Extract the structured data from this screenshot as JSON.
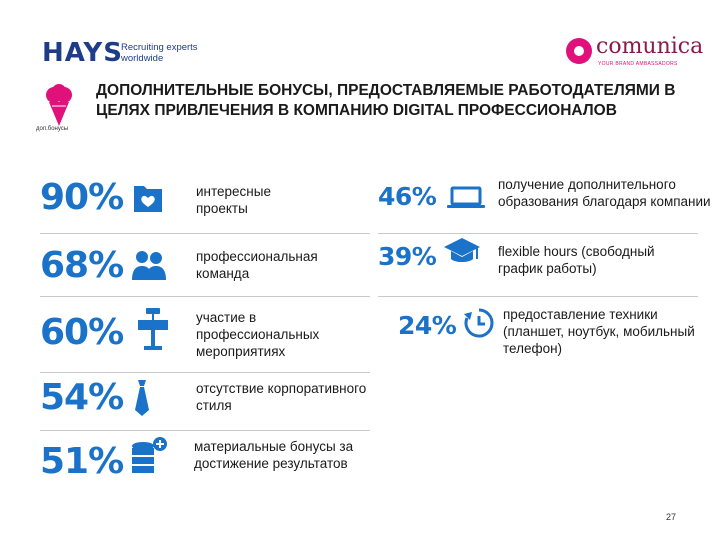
{
  "header": {
    "hays_logo": "HAYS",
    "hays_tagline": "Recruiting experts worldwide",
    "comunica_logo": "comunica",
    "comunica_tagline": "YOUR BRAND AMBASSADORS",
    "bonus_label": "доп.бонусы",
    "title": "ДОПОЛНИТЕЛЬНЫЕ БОНУСЫ, ПРЕДОСТАВЛЯЕМЫЕ РАБОТОДАТЕЛЯМИ В ЦЕЛЯХ ПРИВЛЕЧЕНИЯ В КОМПАНИЮ DIGITAL ПРОФЕССИОНАЛОВ"
  },
  "left_items": [
    {
      "percent": "90%",
      "label": "интересные проекты",
      "icon": "folder-heart-icon"
    },
    {
      "percent": "68%",
      "label": "профессиональная команда",
      "icon": "team-icon"
    },
    {
      "percent": "60%",
      "label": "участие в профессиональных мероприятиях",
      "icon": "podium-icon"
    },
    {
      "percent": "54%",
      "label": "отсутствие корпоративного стиля",
      "icon": "tie-icon"
    },
    {
      "percent": "51%",
      "label": "материальные бонусы за достижение результатов",
      "icon": "coins-plus-icon"
    }
  ],
  "right_items": [
    {
      "percent": "46%",
      "label": "получение дополнительного образования благодаря компании",
      "icon": "laptop-icon"
    },
    {
      "percent": "39%",
      "label_bold": "flexible hours",
      "label": " (свободный график работы)",
      "icon": "graduation-cap-icon"
    },
    {
      "percent": "24%",
      "label": "предоставление техники (планшет, ноутбук, мобильный телефон)",
      "icon": "clock-refresh-icon"
    }
  ],
  "page_number": "27",
  "colors": {
    "accent": "#1a72c9",
    "brand_hays": "#1f3c88",
    "brand_comunica": "#e0117a"
  }
}
